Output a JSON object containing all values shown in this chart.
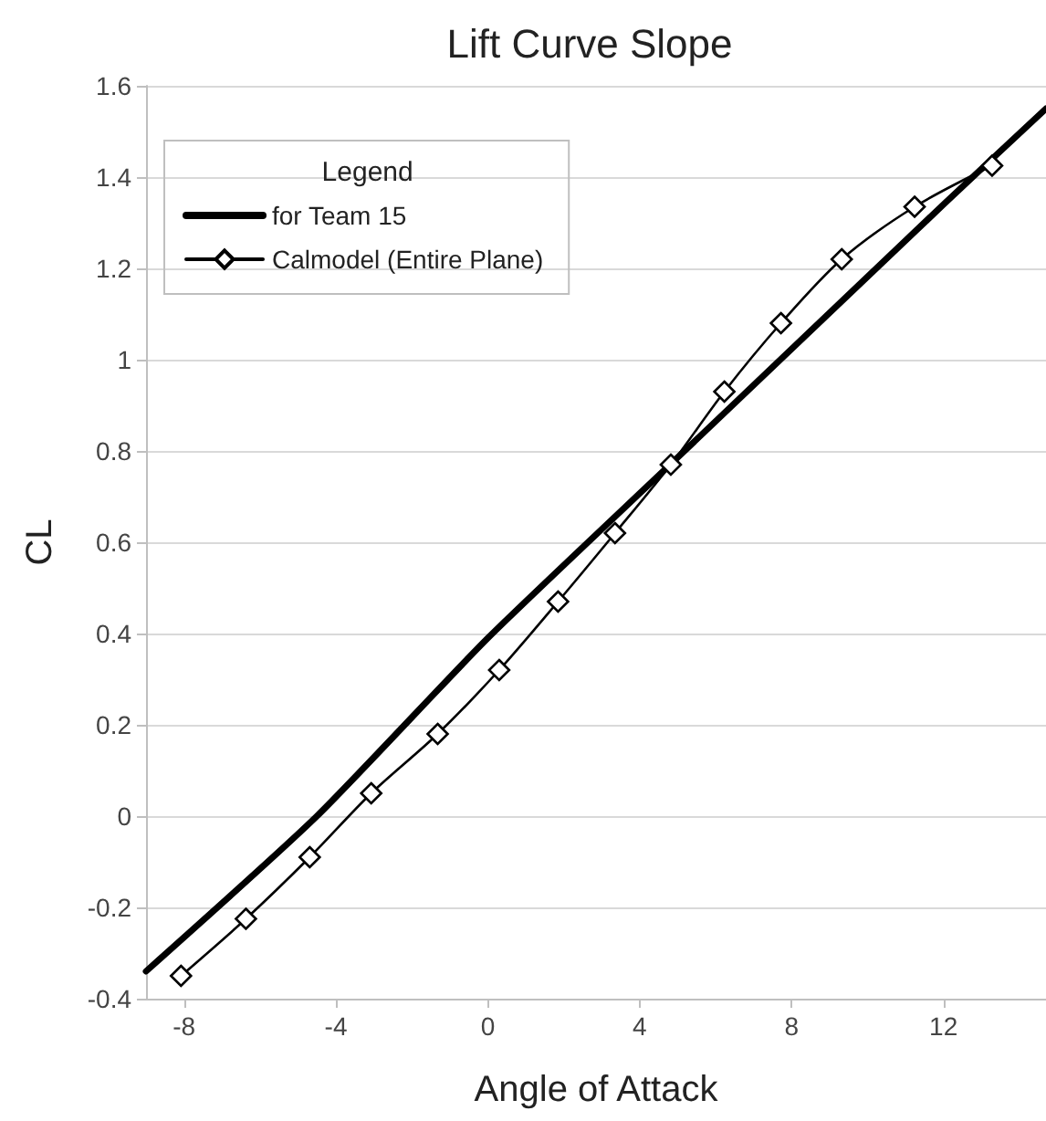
{
  "chart_data": {
    "type": "line",
    "title": "Lift Curve Slope",
    "xlabel": "Angle of Attack",
    "ylabel": "CL",
    "legend_title": "Legend",
    "series": [
      {
        "name": "for Team 15",
        "color": "#000000",
        "marker": "none",
        "x": [
          -9,
          -4.5,
          0,
          4.8,
          12,
          14.7
        ],
        "values": [
          -0.34,
          0,
          0.39,
          0.77,
          1.34,
          1.55
        ]
      },
      {
        "name": "Calmodel (Entire Plane)",
        "color": "#000000",
        "marker": "diamond",
        "x": [
          -8.08,
          -6.37,
          -4.69,
          -3.07,
          -1.32,
          0.3,
          1.85,
          3.35,
          4.82,
          6.23,
          7.72,
          9.32,
          11.24,
          13.28
        ],
        "values": [
          -0.35,
          -0.225,
          -0.09,
          0.05,
          0.18,
          0.32,
          0.47,
          0.62,
          0.77,
          0.93,
          1.08,
          1.22,
          1.335,
          1.425
        ]
      }
    ],
    "xlim": [
      -9,
      14.7
    ],
    "xticks": [
      -8,
      -4,
      0,
      4,
      8,
      12
    ],
    "ylim": [
      -0.4,
      1.6
    ],
    "yticks": [
      -0.4,
      -0.2,
      0,
      0.2,
      0.4,
      0.6,
      0.8,
      1,
      1.2,
      1.4,
      1.6
    ],
    "grid": "y",
    "legend": "top left",
    "line_style": "solid"
  }
}
